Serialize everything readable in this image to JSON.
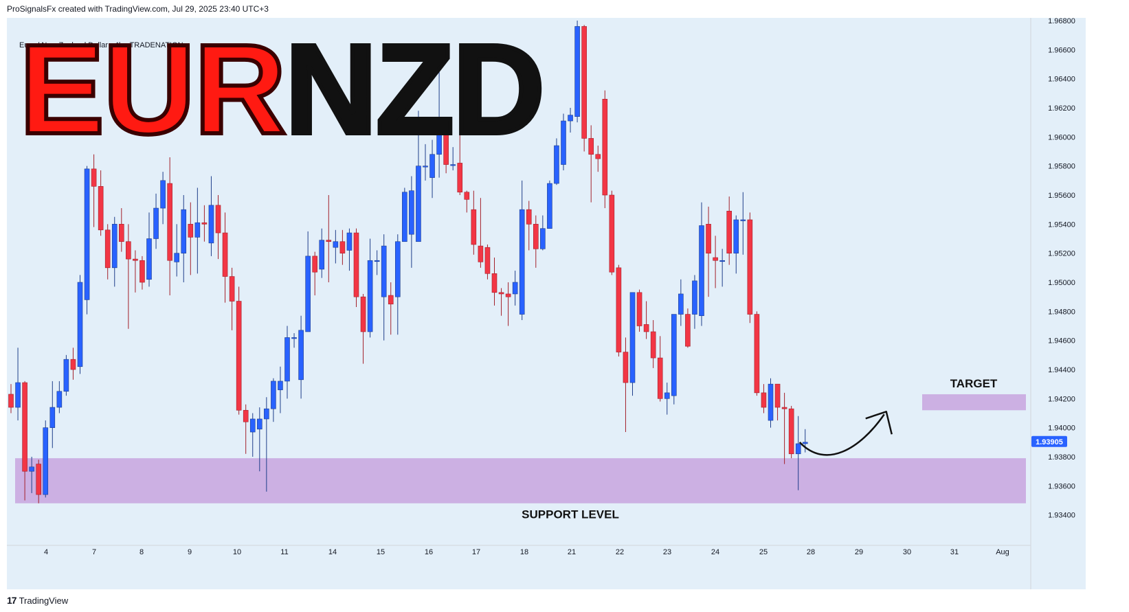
{
  "header": {
    "attribution": "ProSignalsFx created with TradingView.com, Jul 29, 2025 23:40 UTC+3"
  },
  "symbol": {
    "description": "Euro / New Zealand Dollar · 4h · TRADENATION"
  },
  "title": {
    "part1": "EUR",
    "part2": "NZD"
  },
  "footer": {
    "brand": "TradingView",
    "mark": "17"
  },
  "colors": {
    "bullish": "#2962ff",
    "bearish": "#f23645",
    "zone": "#c9a9e0",
    "background": "#e3eff9",
    "price_tag": "#2962ff"
  },
  "chart_data": {
    "type": "candlestick",
    "ylim": [
      1.932,
      1.968
    ],
    "y_ticks": [
      "1.96800",
      "1.96600",
      "1.96400",
      "1.96200",
      "1.96000",
      "1.95800",
      "1.95600",
      "1.95400",
      "1.95200",
      "1.95000",
      "1.94800",
      "1.94600",
      "1.94400",
      "1.94200",
      "1.94000",
      "1.93800",
      "1.93600",
      "1.93400"
    ],
    "x_labels": [
      "4",
      "7",
      "8",
      "9",
      "10",
      "11",
      "14",
      "15",
      "16",
      "17",
      "18",
      "21",
      "22",
      "23",
      "24",
      "25",
      "28",
      "29",
      "30",
      "31",
      "Aug"
    ],
    "current_price": "1.93905",
    "zones": [
      {
        "label": "SUPPORT LEVEL",
        "from": 1.9348,
        "to": 1.9379
      },
      {
        "label": "TARGET",
        "from": 1.9412,
        "to": 1.9423
      }
    ],
    "candles": [
      [
        1.9423,
        1.9414,
        1.943,
        1.941
      ],
      [
        1.9414,
        1.9431,
        1.9455,
        1.9405
      ],
      [
        1.9431,
        1.937,
        1.9432,
        1.935
      ],
      [
        1.937,
        1.9373,
        1.938,
        1.9355
      ],
      [
        1.9375,
        1.9354,
        1.9378,
        1.9348
      ],
      [
        1.9354,
        1.94,
        1.9405,
        1.9352
      ],
      [
        1.94,
        1.9414,
        1.9432,
        1.9386
      ],
      [
        1.9414,
        1.9425,
        1.9432,
        1.941
      ],
      [
        1.9425,
        1.9447,
        1.945,
        1.9422
      ],
      [
        1.9447,
        1.944,
        1.9455,
        1.9433
      ],
      [
        1.9442,
        1.95,
        1.9505,
        1.9437
      ],
      [
        1.9488,
        1.9578,
        1.958,
        1.9478
      ],
      [
        1.9578,
        1.9566,
        1.9588,
        1.9538
      ],
      [
        1.9566,
        1.9536,
        1.9577,
        1.9532
      ],
      [
        1.9536,
        1.951,
        1.954,
        1.9502
      ],
      [
        1.951,
        1.954,
        1.9545,
        1.9497
      ],
      [
        1.954,
        1.9528,
        1.9551,
        1.9521
      ],
      [
        1.9528,
        1.9516,
        1.954,
        1.9468
      ],
      [
        1.9516,
        1.9515,
        1.9522,
        1.9493
      ],
      [
        1.9515,
        1.95,
        1.9518,
        1.9495
      ],
      [
        1.9502,
        1.953,
        1.9548,
        1.9497
      ],
      [
        1.953,
        1.9551,
        1.9561,
        1.9523
      ],
      [
        1.9551,
        1.957,
        1.9576,
        1.954
      ],
      [
        1.9568,
        1.9515,
        1.9586,
        1.9491
      ],
      [
        1.9514,
        1.952,
        1.954,
        1.9504
      ],
      [
        1.952,
        1.955,
        1.956,
        1.95
      ],
      [
        1.954,
        1.9531,
        1.9555,
        1.9505
      ],
      [
        1.9531,
        1.9541,
        1.9565,
        1.9506
      ],
      [
        1.9541,
        1.954,
        1.9553,
        1.9528
      ],
      [
        1.9527,
        1.9553,
        1.9573,
        1.9518
      ],
      [
        1.9553,
        1.9534,
        1.956,
        1.9516
      ],
      [
        1.9534,
        1.9504,
        1.9548,
        1.9486
      ],
      [
        1.9504,
        1.9487,
        1.951,
        1.9467
      ],
      [
        1.9487,
        1.9412,
        1.9497,
        1.9409
      ],
      [
        1.9412,
        1.9404,
        1.9416,
        1.9382
      ],
      [
        1.9397,
        1.9406,
        1.941,
        1.938
      ],
      [
        1.9399,
        1.9406,
        1.9414,
        1.937
      ],
      [
        1.9406,
        1.9413,
        1.9421,
        1.9356
      ],
      [
        1.9413,
        1.9432,
        1.9434,
        1.9404
      ],
      [
        1.9426,
        1.9432,
        1.9442,
        1.941
      ],
      [
        1.9432,
        1.9462,
        1.947,
        1.942
      ],
      [
        1.9462,
        1.9462,
        1.9465,
        1.9455
      ],
      [
        1.9433,
        1.9467,
        1.9477,
        1.942
      ],
      [
        1.9466,
        1.9518,
        1.9535,
        1.9466
      ],
      [
        1.9518,
        1.9507,
        1.9521,
        1.9491
      ],
      [
        1.9509,
        1.9529,
        1.9537,
        1.9503
      ],
      [
        1.9529,
        1.9528,
        1.956,
        1.95
      ],
      [
        1.9524,
        1.9528,
        1.9536,
        1.9513
      ],
      [
        1.9528,
        1.952,
        1.9536,
        1.9512
      ],
      [
        1.9522,
        1.9534,
        1.9537,
        1.9508
      ],
      [
        1.9534,
        1.949,
        1.9537,
        1.9483
      ],
      [
        1.949,
        1.9466,
        1.9492,
        1.9444
      ],
      [
        1.9466,
        1.9515,
        1.953,
        1.9462
      ],
      [
        1.9515,
        1.9515,
        1.9522,
        1.9505
      ],
      [
        1.949,
        1.9525,
        1.9533,
        1.946
      ],
      [
        1.9491,
        1.9485,
        1.95,
        1.9464
      ],
      [
        1.949,
        1.9528,
        1.9533,
        1.9464
      ],
      [
        1.9528,
        1.9562,
        1.9565,
        1.9528
      ],
      [
        1.9533,
        1.9563,
        1.9573,
        1.951
      ],
      [
        1.9528,
        1.958,
        1.9618,
        1.9528
      ],
      [
        1.958,
        1.958,
        1.9595,
        1.957
      ],
      [
        1.9572,
        1.9588,
        1.9598,
        1.9558
      ],
      [
        1.9588,
        1.9608,
        1.9649,
        1.9572
      ],
      [
        1.9608,
        1.9581,
        1.961,
        1.9575
      ],
      [
        1.9581,
        1.9581,
        1.9593,
        1.9577
      ],
      [
        1.9582,
        1.9562,
        1.9604,
        1.956
      ],
      [
        1.9562,
        1.9557,
        1.9563,
        1.9548
      ],
      [
        1.955,
        1.9526,
        1.9563,
        1.9519
      ],
      [
        1.9525,
        1.9514,
        1.9558,
        1.951
      ],
      [
        1.9524,
        1.9506,
        1.9526,
        1.9502
      ],
      [
        1.9506,
        1.9493,
        1.9517,
        1.9484
      ],
      [
        1.9493,
        1.9492,
        1.9496,
        1.9477
      ],
      [
        1.9492,
        1.949,
        1.95,
        1.947
      ],
      [
        1.9492,
        1.95,
        1.9508,
        1.9484
      ],
      [
        1.9478,
        1.955,
        1.957,
        1.9474
      ],
      [
        1.955,
        1.954,
        1.9556,
        1.9522
      ],
      [
        1.954,
        1.9523,
        1.9546,
        1.951
      ],
      [
        1.9523,
        1.9537,
        1.9546,
        1.9522
      ],
      [
        1.9537,
        1.9568,
        1.957,
        1.9537
      ],
      [
        1.9568,
        1.9594,
        1.9599,
        1.9567
      ],
      [
        1.9581,
        1.9611,
        1.9616,
        1.9577
      ],
      [
        1.9611,
        1.9615,
        1.962,
        1.9603
      ],
      [
        1.9614,
        1.9676,
        1.968,
        1.961
      ],
      [
        1.9676,
        1.9599,
        1.9677,
        1.959
      ],
      [
        1.9599,
        1.9588,
        1.9608,
        1.9555
      ],
      [
        1.9588,
        1.9585,
        1.9594,
        1.9576
      ],
      [
        1.9626,
        1.956,
        1.9632,
        1.9551
      ],
      [
        1.956,
        1.9507,
        1.9563,
        1.9505
      ],
      [
        1.951,
        1.9452,
        1.9512,
        1.9449
      ],
      [
        1.9452,
        1.9431,
        1.9462,
        1.9397
      ],
      [
        1.9431,
        1.9493,
        1.9493,
        1.9422
      ],
      [
        1.9493,
        1.947,
        1.9495,
        1.9466
      ],
      [
        1.9471,
        1.9466,
        1.9487,
        1.9461
      ],
      [
        1.9466,
        1.9448,
        1.9474,
        1.9441
      ],
      [
        1.9448,
        1.942,
        1.9463,
        1.9418
      ],
      [
        1.942,
        1.9424,
        1.9431,
        1.9409
      ],
      [
        1.9422,
        1.9478,
        1.9478,
        1.9416
      ],
      [
        1.9478,
        1.9492,
        1.9502,
        1.947
      ],
      [
        1.9478,
        1.9456,
        1.9482,
        1.9455
      ],
      [
        1.9478,
        1.9501,
        1.9505,
        1.9468
      ],
      [
        1.9477,
        1.9539,
        1.9555,
        1.947
      ],
      [
        1.954,
        1.952,
        1.9552,
        1.949
      ],
      [
        1.9517,
        1.9515,
        1.9532,
        1.9496
      ],
      [
        1.9515,
        1.9515,
        1.9523,
        1.9497
      ],
      [
        1.9549,
        1.952,
        1.9559,
        1.9512
      ],
      [
        1.952,
        1.9543,
        1.9546,
        1.9506
      ],
      [
        1.9543,
        1.9543,
        1.9562,
        1.9519
      ],
      [
        1.9543,
        1.9478,
        1.9548,
        1.9472
      ],
      [
        1.9478,
        1.9424,
        1.948,
        1.9422
      ],
      [
        1.9424,
        1.9414,
        1.943,
        1.941
      ],
      [
        1.9405,
        1.943,
        1.9434,
        1.94
      ],
      [
        1.943,
        1.9414,
        1.943,
        1.9405
      ],
      [
        1.9414,
        1.9413,
        1.9424,
        1.9375
      ],
      [
        1.9413,
        1.9382,
        1.9415,
        1.9379
      ],
      [
        1.9382,
        1.9389,
        1.9408,
        1.9357
      ],
      [
        1.9389,
        1.939,
        1.9399,
        1.9383
      ]
    ]
  }
}
